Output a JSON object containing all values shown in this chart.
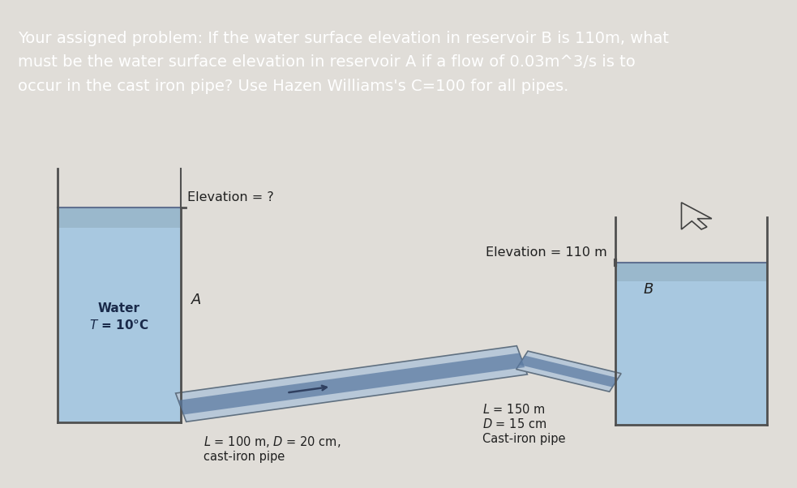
{
  "title_text": "Your assigned problem: If the water surface elevation in reservoir B is 110m, what\nmust be the water surface elevation in reservoir A if a flow of 0.03m^3/s is to\noccur in the cast iron pipe? Use Hazen Williams's C=100 for all pipes.",
  "title_bg": "#2e2e2e",
  "title_color": "#ffffff",
  "body_bg": "#e0ddd8",
  "reservoir_A_label": "Water\n$T$ = 10°C",
  "reservoir_A_letter": "$A$",
  "reservoir_B_letter": "$B$",
  "elevation_A_label": "Elevation = ?",
  "elevation_B_label": "Elevation = 110 m",
  "pipe1_label": "$L$ = 100 m, $D$ = 20 cm,\ncast-iron pipe",
  "pipe2_label": "$L$ = 150 m\n$D$ = 15 cm\nCast-iron pipe",
  "water_color": "#a8c8e0",
  "water_surface_hatch_color": "#8098b0",
  "wall_color_light": "#c8c8c8",
  "wall_color_dark": "#505050",
  "pipe_outer_color": "#b8c8d8",
  "pipe_inner_color": "#5878a0",
  "pipe_edge_color": "#607080",
  "text_color": "#202020",
  "hatch_bg": "#b0b0b0"
}
